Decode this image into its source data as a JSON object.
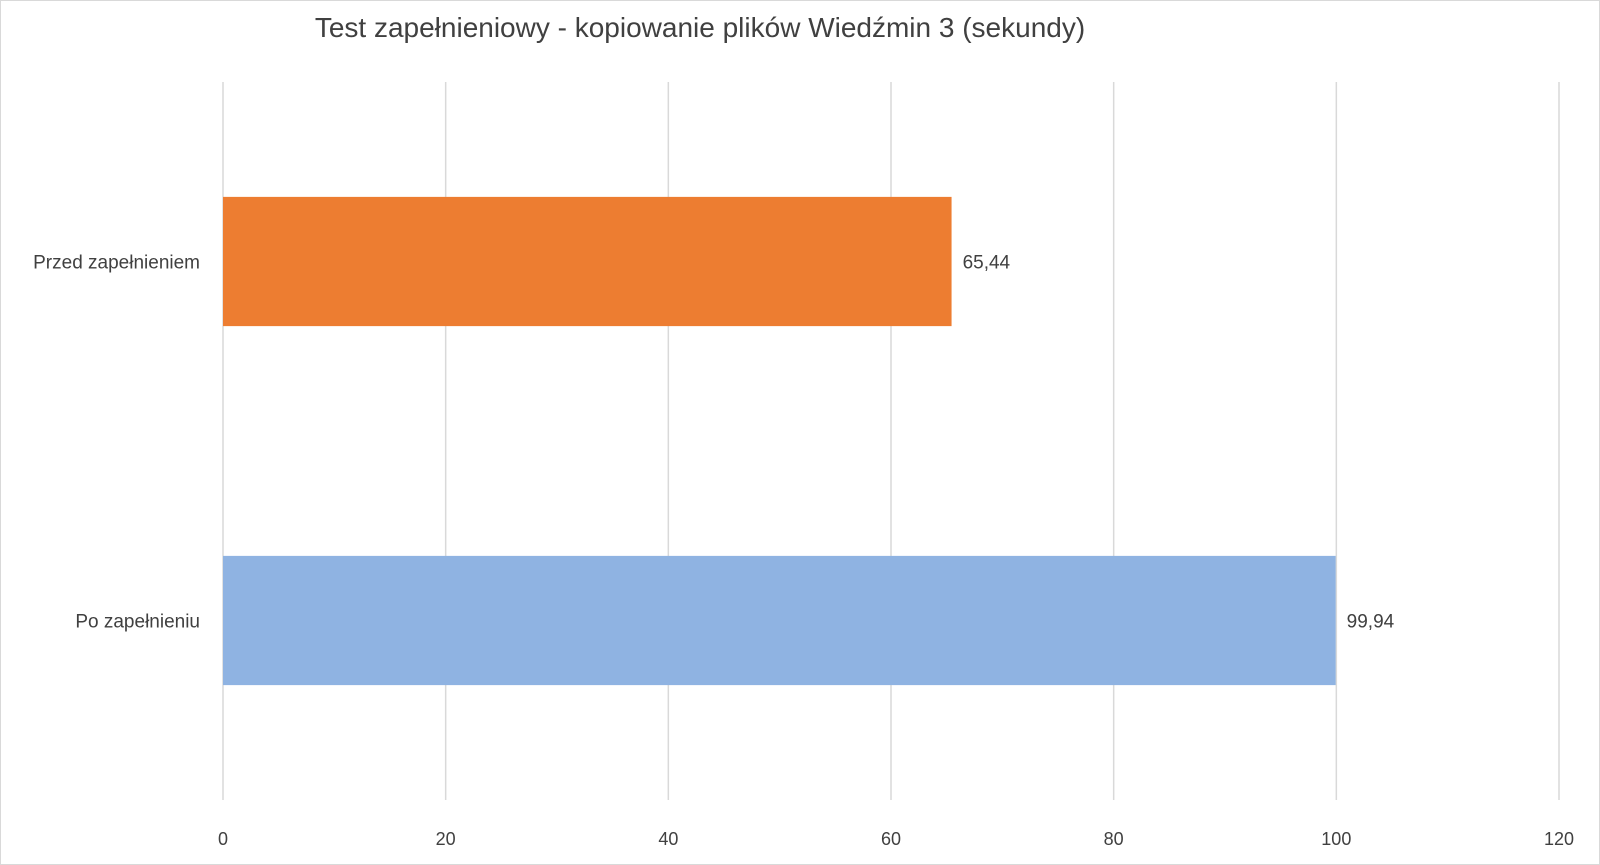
{
  "chart_data": {
    "type": "bar",
    "orientation": "horizontal",
    "title": "Test zapełnieniowy - kopiowanie plików Wiedźmin 3 (sekundy)",
    "categories": [
      "Przed zapełnieniem",
      "Po zapełnieniu"
    ],
    "values": [
      65.44,
      99.94
    ],
    "data_labels": [
      "65,44",
      "99,94"
    ],
    "colors": [
      "#ED7D31",
      "#8FB3E2"
    ],
    "xlim": [
      0,
      120
    ],
    "xticks": [
      0,
      20,
      40,
      60,
      80,
      100,
      120
    ],
    "grid": true,
    "legend": "none",
    "xlabel": "",
    "ylabel": ""
  }
}
